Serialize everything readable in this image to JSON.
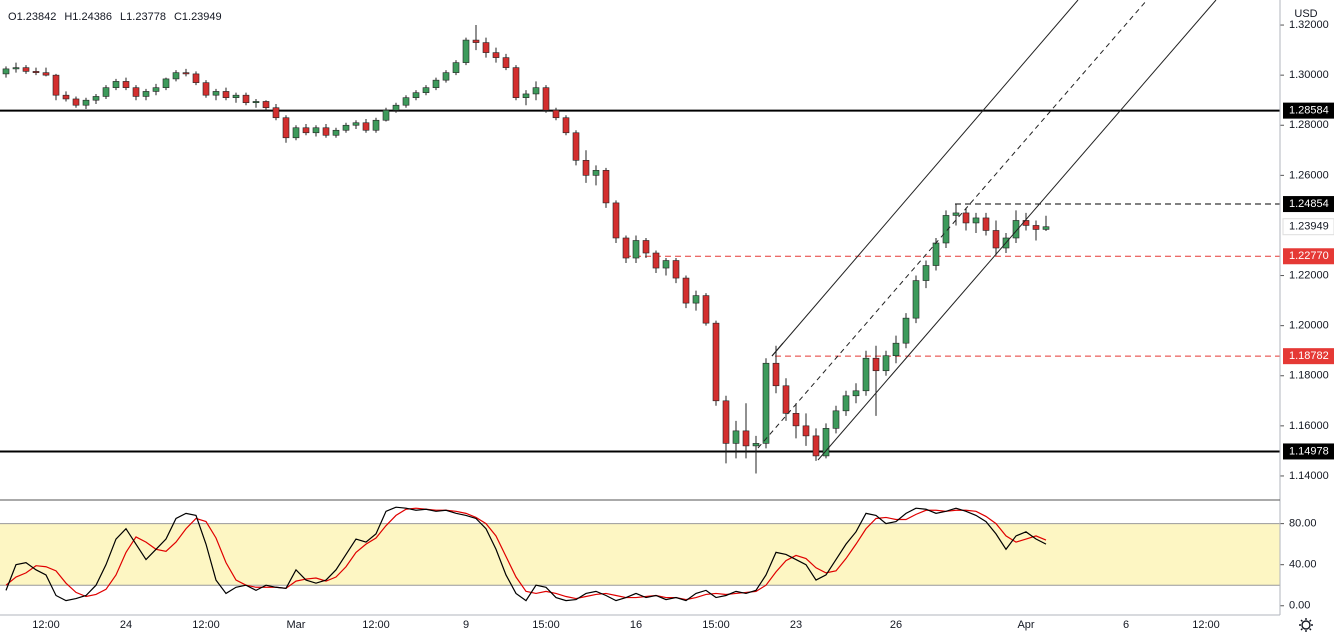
{
  "chart_data": [
    {
      "type": "candlestick",
      "currency": "USD",
      "ohlc_labels": [
        "O",
        "H",
        "L",
        "C"
      ],
      "up_color": "#3d9a5b",
      "down_color": "#d32f2f",
      "ylim": [
        1.1304,
        1.33
      ],
      "yticks": [
        {
          "value": 1.32,
          "label": "1.32000"
        },
        {
          "value": 1.3,
          "label": "1.30000"
        },
        {
          "value": 1.28,
          "label": "1.28000"
        },
        {
          "value": 1.26,
          "label": "1.26000"
        },
        {
          "value": 1.22,
          "label": "1.22000"
        },
        {
          "value": 1.2,
          "label": "1.20000"
        },
        {
          "value": 1.18,
          "label": "1.18000"
        },
        {
          "value": 1.16,
          "label": "1.16000"
        },
        {
          "value": 1.14,
          "label": "1.14000"
        }
      ],
      "levels": [
        {
          "value": 1.28584,
          "label": "1.28584",
          "color": "#000000",
          "style": "solid"
        },
        {
          "value": 1.24854,
          "label": "1.24854",
          "color": "#000000",
          "style": "dashed"
        },
        {
          "value": 1.2277,
          "label": "1.22770",
          "color": "#e53935",
          "style": "dashed"
        },
        {
          "value": 1.18782,
          "label": "1.18782",
          "color": "#e53935",
          "style": "dashed"
        },
        {
          "value": 1.14978,
          "label": "1.14978",
          "color": "#000000",
          "style": "solid"
        }
      ],
      "categories": [
        null,
        null,
        null,
        null,
        "12:00",
        null,
        null,
        null,
        null,
        null,
        null,
        null,
        "24",
        null,
        null,
        null,
        null,
        null,
        null,
        null,
        "12:00",
        null,
        null,
        null,
        null,
        null,
        null,
        null,
        null,
        "Mar",
        null,
        null,
        null,
        null,
        null,
        null,
        null,
        "12:00",
        null,
        null,
        null,
        null,
        null,
        null,
        null,
        null,
        "9",
        null,
        null,
        null,
        null,
        null,
        null,
        null,
        "15:00",
        null,
        null,
        null,
        null,
        null,
        null,
        null,
        null,
        "16",
        null,
        null,
        null,
        null,
        null,
        null,
        null,
        "15:00",
        null,
        null,
        null,
        null,
        null,
        null,
        null,
        "23",
        null,
        null,
        null,
        null,
        null,
        null,
        null,
        null,
        null,
        "26",
        null,
        null,
        null,
        null,
        null,
        null,
        null,
        null,
        null,
        null,
        null,
        null,
        "Apr",
        null,
        null,
        null,
        null,
        null,
        null,
        null,
        null,
        null,
        "6",
        null,
        null,
        null,
        null,
        null,
        null,
        null,
        "12:00"
      ],
      "ohlc": [
        [
          1.3005,
          1.3035,
          1.299,
          1.3025
        ],
        [
          1.3025,
          1.305,
          1.301,
          1.303
        ],
        [
          1.303,
          1.304,
          1.3005,
          1.3015
        ],
        [
          1.3015,
          1.303,
          1.3,
          1.301
        ],
        [
          1.301,
          1.303,
          1.2995,
          1.3
        ],
        [
          1.3,
          1.3005,
          1.29,
          1.292
        ],
        [
          1.292,
          1.2935,
          1.2895,
          1.2905
        ],
        [
          1.2905,
          1.2915,
          1.287,
          1.288
        ],
        [
          1.288,
          1.291,
          1.2865,
          1.29
        ],
        [
          1.29,
          1.2925,
          1.2885,
          1.2915
        ],
        [
          1.2915,
          1.296,
          1.2905,
          1.295
        ],
        [
          1.295,
          1.2985,
          1.294,
          1.2975
        ],
        [
          1.2975,
          1.299,
          1.294,
          1.295
        ],
        [
          1.295,
          1.296,
          1.29,
          1.2915
        ],
        [
          1.2915,
          1.2945,
          1.29,
          1.2935
        ],
        [
          1.2935,
          1.2965,
          1.292,
          1.295
        ],
        [
          1.295,
          1.299,
          1.294,
          1.2985
        ],
        [
          1.2985,
          1.302,
          1.2975,
          1.301
        ],
        [
          1.301,
          1.3025,
          1.2995,
          1.3005
        ],
        [
          1.3005,
          1.3015,
          1.296,
          1.297
        ],
        [
          1.297,
          1.298,
          1.291,
          1.292
        ],
        [
          1.292,
          1.2945,
          1.29,
          1.2935
        ],
        [
          1.2935,
          1.295,
          1.29,
          1.291
        ],
        [
          1.291,
          1.293,
          1.289,
          1.292
        ],
        [
          1.292,
          1.293,
          1.288,
          1.289
        ],
        [
          1.289,
          1.2905,
          1.287,
          1.2895
        ],
        [
          1.2895,
          1.29,
          1.286,
          1.287
        ],
        [
          1.287,
          1.2885,
          1.282,
          1.283
        ],
        [
          1.283,
          1.284,
          1.273,
          1.275
        ],
        [
          1.275,
          1.28,
          1.274,
          1.279
        ],
        [
          1.279,
          1.2805,
          1.276,
          1.277
        ],
        [
          1.277,
          1.28,
          1.2755,
          1.279
        ],
        [
          1.279,
          1.2805,
          1.275,
          1.276
        ],
        [
          1.276,
          1.279,
          1.275,
          1.278
        ],
        [
          1.278,
          1.281,
          1.277,
          1.28
        ],
        [
          1.28,
          1.282,
          1.2785,
          1.281
        ],
        [
          1.281,
          1.2825,
          1.277,
          1.278
        ],
        [
          1.278,
          1.283,
          1.277,
          1.282
        ],
        [
          1.282,
          1.287,
          1.2815,
          1.286
        ],
        [
          1.286,
          1.289,
          1.285,
          1.288
        ],
        [
          1.288,
          1.292,
          1.287,
          1.291
        ],
        [
          1.291,
          1.294,
          1.29,
          1.293
        ],
        [
          1.293,
          1.296,
          1.292,
          1.295
        ],
        [
          1.295,
          1.299,
          1.294,
          1.298
        ],
        [
          1.298,
          1.302,
          1.297,
          1.301
        ],
        [
          1.301,
          1.306,
          1.3,
          1.305
        ],
        [
          1.305,
          1.315,
          1.304,
          1.314
        ],
        [
          1.314,
          1.32,
          1.31,
          1.313
        ],
        [
          1.313,
          1.315,
          1.307,
          1.309
        ],
        [
          1.309,
          1.311,
          1.305,
          1.307
        ],
        [
          1.307,
          1.3085,
          1.302,
          1.303
        ],
        [
          1.303,
          1.304,
          1.29,
          1.291
        ],
        [
          1.291,
          1.294,
          1.288,
          1.2925
        ],
        [
          1.2925,
          1.2975,
          1.29,
          1.295
        ],
        [
          1.295,
          1.296,
          1.285,
          1.286
        ],
        [
          1.286,
          1.287,
          1.282,
          1.283
        ],
        [
          1.283,
          1.284,
          1.276,
          1.277
        ],
        [
          1.277,
          1.278,
          1.264,
          1.266
        ],
        [
          1.266,
          1.27,
          1.257,
          1.26
        ],
        [
          1.26,
          1.264,
          1.256,
          1.262
        ],
        [
          1.262,
          1.263,
          1.247,
          1.249
        ],
        [
          1.249,
          1.25,
          1.233,
          1.235
        ],
        [
          1.235,
          1.236,
          1.225,
          1.227
        ],
        [
          1.227,
          1.236,
          1.225,
          1.234
        ],
        [
          1.234,
          1.235,
          1.227,
          1.229
        ],
        [
          1.229,
          1.23,
          1.221,
          1.223
        ],
        [
          1.223,
          1.227,
          1.22,
          1.226
        ],
        [
          1.226,
          1.227,
          1.217,
          1.219
        ],
        [
          1.219,
          1.22,
          1.207,
          1.209
        ],
        [
          1.209,
          1.214,
          1.206,
          1.212
        ],
        [
          1.212,
          1.213,
          1.2,
          1.201
        ],
        [
          1.201,
          1.202,
          1.168,
          1.17
        ],
        [
          1.17,
          1.172,
          1.145,
          1.153
        ],
        [
          1.153,
          1.162,
          1.147,
          1.158
        ],
        [
          1.158,
          1.169,
          1.147,
          1.152
        ],
        [
          1.152,
          1.156,
          1.141,
          1.153
        ],
        [
          1.153,
          1.187,
          1.151,
          1.185
        ],
        [
          1.185,
          1.192,
          1.173,
          1.176
        ],
        [
          1.176,
          1.179,
          1.162,
          1.165
        ],
        [
          1.165,
          1.169,
          1.155,
          1.16
        ],
        [
          1.16,
          1.165,
          1.152,
          1.156
        ],
        [
          1.156,
          1.159,
          1.146,
          1.148
        ],
        [
          1.148,
          1.161,
          1.147,
          1.159
        ],
        [
          1.159,
          1.168,
          1.157,
          1.166
        ],
        [
          1.166,
          1.174,
          1.164,
          1.172
        ],
        [
          1.172,
          1.177,
          1.169,
          1.174
        ],
        [
          1.174,
          1.19,
          1.172,
          1.187
        ],
        [
          1.187,
          1.192,
          1.164,
          1.182
        ],
        [
          1.182,
          1.19,
          1.18,
          1.188
        ],
        [
          1.188,
          1.196,
          1.185,
          1.193
        ],
        [
          1.193,
          1.205,
          1.191,
          1.203
        ],
        [
          1.203,
          1.22,
          1.201,
          1.218
        ],
        [
          1.218,
          1.226,
          1.215,
          1.224
        ],
        [
          1.224,
          1.235,
          1.222,
          1.233
        ],
        [
          1.233,
          1.246,
          1.231,
          1.244
        ],
        [
          1.244,
          1.2485,
          1.24,
          1.245
        ],
        [
          1.245,
          1.247,
          1.238,
          1.241
        ],
        [
          1.241,
          1.245,
          1.237,
          1.243
        ],
        [
          1.243,
          1.245,
          1.236,
          1.238
        ],
        [
          1.238,
          1.242,
          1.228,
          1.231
        ],
        [
          1.231,
          1.237,
          1.229,
          1.235
        ],
        [
          1.235,
          1.246,
          1.233,
          1.242
        ],
        [
          1.242,
          1.245,
          1.238,
          1.24
        ],
        [
          1.24,
          1.242,
          1.234,
          1.2384
        ],
        [
          1.23842,
          1.24386,
          1.23778,
          1.23949
        ],
        null,
        null,
        null,
        null,
        null,
        null,
        null,
        null,
        null,
        null,
        null,
        null,
        null,
        null,
        null,
        null
      ]
    },
    {
      "type": "line",
      "ylim": [
        -9,
        103
      ],
      "band": [
        20,
        80
      ],
      "band_color": "#fdf6c3",
      "yticks": [
        {
          "value": 80,
          "label": "80.00"
        },
        {
          "value": 40,
          "label": "40.00"
        },
        {
          "value": 0,
          "label": "0.00"
        }
      ],
      "series": [
        {
          "color": "#000000",
          "values": [
            15,
            40,
            42,
            35,
            30,
            10,
            5,
            7,
            10,
            20,
            40,
            65,
            75,
            60,
            45,
            55,
            65,
            85,
            90,
            88,
            60,
            25,
            12,
            18,
            20,
            15,
            20,
            18,
            17,
            35,
            25,
            22,
            25,
            35,
            50,
            65,
            62,
            70,
            92,
            96,
            95,
            93,
            94,
            92,
            93,
            90,
            88,
            85,
            75,
            55,
            30,
            12,
            5,
            20,
            18,
            8,
            5,
            6,
            12,
            14,
            10,
            5,
            8,
            12,
            8,
            10,
            6,
            8,
            5,
            12,
            15,
            8,
            10,
            14,
            12,
            15,
            30,
            52,
            50,
            45,
            40,
            25,
            30,
            45,
            60,
            72,
            90,
            88,
            80,
            82,
            90,
            95,
            94,
            90,
            92,
            95,
            92,
            88,
            82,
            70,
            55,
            68,
            72,
            65,
            60,
            null,
            null,
            null,
            null,
            null,
            null,
            null,
            null,
            null,
            null,
            null,
            null,
            null,
            null,
            null,
            null
          ]
        },
        {
          "color": "#e00000",
          "values": [
            20,
            28,
            32,
            39,
            38,
            34,
            22,
            13,
            9,
            11,
            16,
            30,
            52,
            67,
            62,
            55,
            53,
            62,
            75,
            85,
            82,
            66,
            42,
            25,
            20,
            18,
            18,
            18,
            17,
            24,
            26,
            27,
            24,
            28,
            38,
            52,
            60,
            66,
            78,
            88,
            94,
            95,
            94,
            93,
            93,
            92,
            90,
            86,
            80,
            68,
            48,
            28,
            14,
            12,
            14,
            12,
            9,
            7,
            9,
            11,
            12,
            10,
            8,
            8,
            9,
            10,
            8,
            8,
            6,
            8,
            11,
            12,
            11,
            12,
            13,
            14,
            20,
            33,
            44,
            49,
            46,
            37,
            32,
            34,
            46,
            60,
            75,
            85,
            86,
            84,
            84,
            89,
            93,
            93,
            92,
            93,
            93,
            92,
            87,
            80,
            68,
            62,
            65,
            68,
            64,
            null,
            null,
            null,
            null,
            null,
            null,
            null,
            null,
            null,
            null,
            null,
            null,
            null,
            null,
            null,
            null
          ]
        }
      ]
    }
  ]
}
